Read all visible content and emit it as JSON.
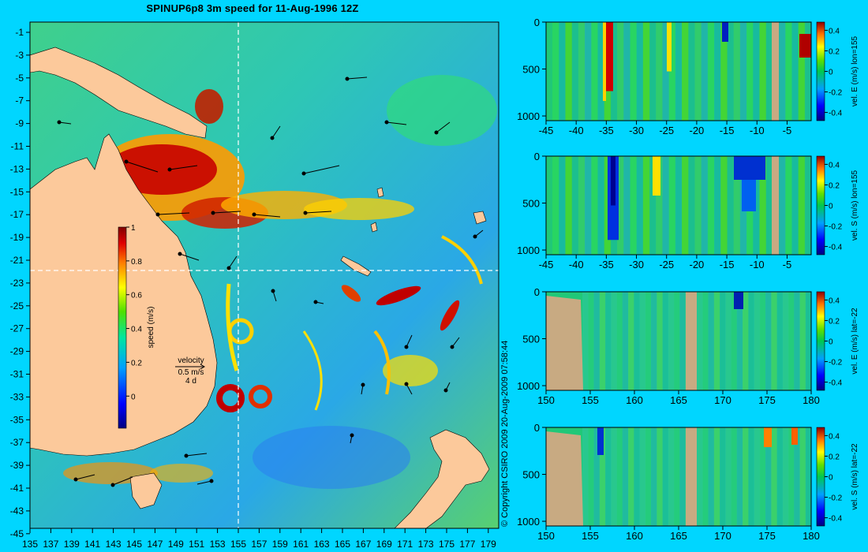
{
  "title": "SPINUP6p8 3m speed for 11-Aug-1996 12Z",
  "copyright": "© Copyright CSIRO 2009  20-Aug-2009 07:58:44",
  "map": {
    "lat_ticks": [
      "-1",
      "-3",
      "-5",
      "-7",
      "-9",
      "-11",
      "-13",
      "-15",
      "-17",
      "-19",
      "-21",
      "-23",
      "-25",
      "-27",
      "-29",
      "-31",
      "-33",
      "-35",
      "-37",
      "-39",
      "-41",
      "-43",
      "-45"
    ],
    "lon_ticks": [
      "135",
      "137",
      "139",
      "141",
      "143",
      "145",
      "147",
      "149",
      "151",
      "153",
      "155",
      "157",
      "159",
      "161",
      "163",
      "165",
      "167",
      "169",
      "171",
      "173",
      "175",
      "177",
      "179"
    ],
    "colorbar_ticks": [
      "1",
      "0.8",
      "0.6",
      "0.4",
      "0.2",
      "0"
    ],
    "colorbar_label": "speed (m/s)",
    "velocity_key": {
      "title": "velocity",
      "speed": "0.5 m/s",
      "duration": "4 d"
    },
    "land_color": "#fcc99b"
  },
  "sections": [
    {
      "label": "vel. E (m/s) lon=155",
      "x_ticks": [
        "-45",
        "-40",
        "-35",
        "-30",
        "-25",
        "-20",
        "-15",
        "-10",
        "-5"
      ],
      "y_ticks": [
        "0",
        "500",
        "1000"
      ],
      "cbar_ticks": [
        "0.4",
        "0.2",
        "0",
        "-0.2",
        "-0.4"
      ]
    },
    {
      "label": "vel. S (m/s) lon=155",
      "x_ticks": [
        "-45",
        "-40",
        "-35",
        "-30",
        "-25",
        "-20",
        "-15",
        "-10",
        "-5"
      ],
      "y_ticks": [
        "0",
        "500",
        "1000"
      ],
      "cbar_ticks": [
        "0.4",
        "0.2",
        "0",
        "-0.2",
        "-0.4"
      ]
    },
    {
      "label": "vel. E (m/s) lat=-22",
      "x_ticks": [
        "150",
        "155",
        "160",
        "165",
        "170",
        "175",
        "180"
      ],
      "y_ticks": [
        "0",
        "500",
        "1000"
      ],
      "cbar_ticks": [
        "0.4",
        "0.2",
        "0",
        "-0.2",
        "-0.4"
      ]
    },
    {
      "label": "vel. S (m/s) lat=-22",
      "x_ticks": [
        "150",
        "155",
        "160",
        "165",
        "170",
        "175",
        "180"
      ],
      "y_ticks": [
        "0",
        "500",
        "1000"
      ],
      "cbar_ticks": [
        "0.4",
        "0.2",
        "0",
        "-0.2",
        "-0.4"
      ]
    }
  ],
  "colors": {
    "background": "#00d6ff",
    "section_land": "#c8aa82"
  }
}
